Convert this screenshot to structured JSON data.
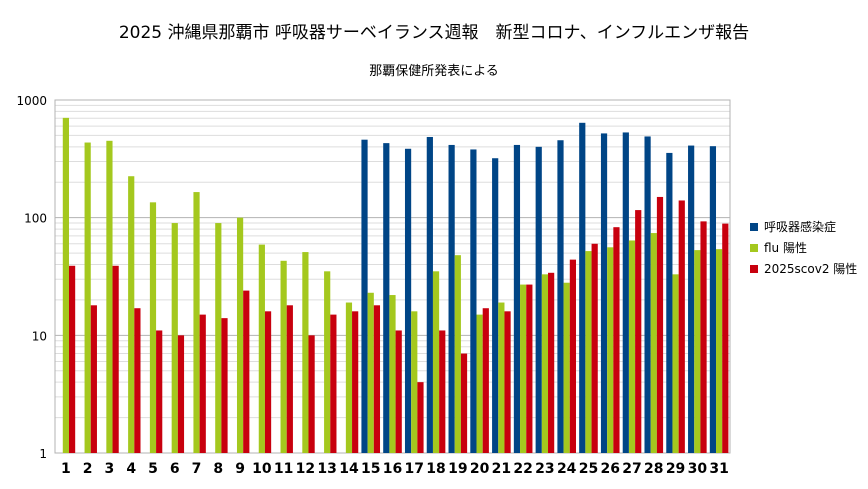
{
  "chart_data": {
    "type": "bar",
    "title": "2025  沖縄県那覇市 呼吸器サーベイランス週報　新型コロナ、インフルエンザ報告",
    "subtitle": "那覇保健所発表による",
    "y_scale": "log",
    "ylim": [
      1,
      1000
    ],
    "y_ticks": [
      "1",
      "10",
      "100",
      "1000"
    ],
    "categories": [
      "1",
      "2",
      "3",
      "4",
      "5",
      "6",
      "7",
      "8",
      "9",
      "10",
      "11",
      "12",
      "13",
      "14",
      "15",
      "16",
      "17",
      "18",
      "19",
      "20",
      "21",
      "22",
      "23",
      "24",
      "25",
      "26",
      "27",
      "28",
      "29",
      "30",
      "31"
    ],
    "grid": "horizontal log gridlines",
    "legend_position": "right",
    "series": [
      {
        "name": "呼吸器感染症",
        "color": "#004586",
        "values": [
          null,
          null,
          null,
          null,
          null,
          null,
          null,
          null,
          null,
          null,
          null,
          null,
          null,
          null,
          460,
          430,
          385,
          485,
          415,
          380,
          320,
          415,
          400,
          455,
          640,
          520,
          530,
          490,
          355,
          410,
          405
        ]
      },
      {
        "name": "flu 陽性",
        "color": "#a4c81e",
        "values": [
          705,
          435,
          450,
          225,
          135,
          90,
          165,
          90,
          100,
          59,
          43,
          51,
          35,
          19,
          23,
          22,
          16,
          35,
          48,
          15,
          19,
          27,
          33,
          28,
          52,
          56,
          64,
          74,
          33,
          53,
          54
        ]
      },
      {
        "name": "2025scov2 陽性",
        "color": "#c8000e",
        "values": [
          39,
          18,
          39,
          17,
          11,
          10,
          15,
          14,
          24,
          16,
          18,
          10,
          15,
          16,
          18,
          11,
          4,
          11,
          7,
          17,
          16,
          27,
          34,
          44,
          60,
          83,
          116,
          150,
          140,
          93,
          89
        ]
      }
    ]
  }
}
